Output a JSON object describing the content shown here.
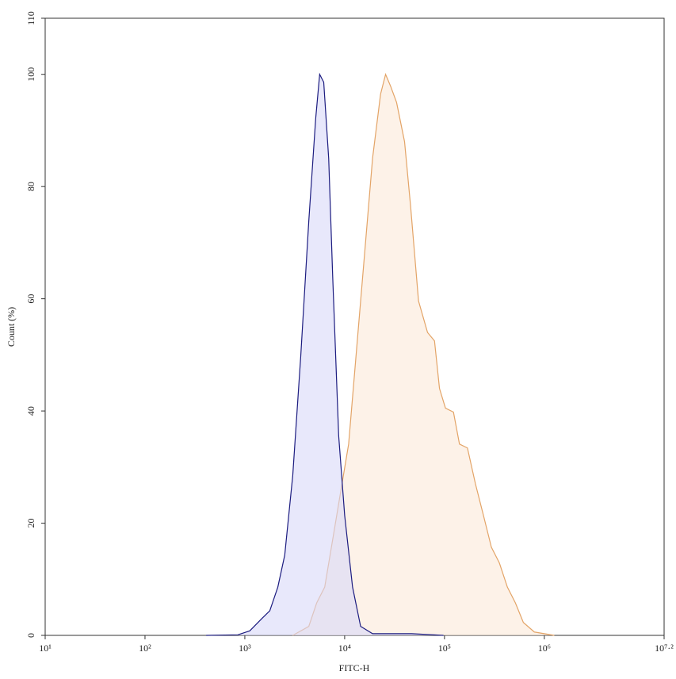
{
  "chart_data": {
    "type": "area",
    "x_label": "FITC-H",
    "y_label": "Count (%)",
    "xscale": "log",
    "xlim": [
      10,
      15848932
    ],
    "xticks": [
      {
        "value": 10,
        "label": "10¹"
      },
      {
        "value": 100,
        "label": "10²"
      },
      {
        "value": 1000,
        "label": "10³"
      },
      {
        "value": 10000,
        "label": "10⁴"
      },
      {
        "value": 100000,
        "label": "10⁵"
      },
      {
        "value": 1000000,
        "label": "10⁶"
      },
      {
        "value": 15848932,
        "label": "10⁷·²"
      }
    ],
    "ylim": [
      0,
      110
    ],
    "yticks": [
      0,
      20,
      40,
      60,
      80,
      100,
      110
    ],
    "series": [
      {
        "color": "#e3a467",
        "fill": "#fbe9d8",
        "x": [
          3020,
          4370,
          5250,
          6310,
          7590,
          9120,
          10960,
          13180,
          15850,
          19050,
          22910,
          25700,
          28840,
          33110,
          39810,
          45710,
          54950,
          67610,
          79430,
          89130,
          102300,
          123000,
          141300,
          169800,
          204200,
          245500,
          295100,
          354800,
          426600,
          512900,
          616600,
          794300,
          1259000
        ],
        "values": [
          0,
          1.6,
          5.8,
          8.6,
          17.1,
          25.6,
          34.1,
          51.1,
          68.1,
          85.1,
          96.5,
          100,
          97.9,
          95,
          88,
          76.6,
          59.6,
          54,
          52.5,
          44,
          40.5,
          39.8,
          34.1,
          33.4,
          27,
          21.4,
          15.7,
          12.9,
          8.6,
          5.8,
          2.3,
          0.6,
          0
        ]
      },
      {
        "color": "#1c1c80",
        "fill": "#d8d8f8",
        "x": [
          410,
          850,
          1120,
          1480,
          1780,
          2140,
          2510,
          3020,
          3630,
          4370,
          5130,
          5620,
          6170,
          6920,
          7590,
          8710,
          10000,
          12000,
          14450,
          19050,
          46800,
          97700
        ],
        "values": [
          0,
          0.1,
          0.8,
          3,
          4.4,
          8.6,
          14.3,
          28.5,
          49.7,
          73.8,
          92.2,
          100,
          98.6,
          85,
          63.9,
          35.6,
          21.4,
          8.6,
          1.6,
          0.3,
          0.3,
          0
        ]
      }
    ]
  }
}
